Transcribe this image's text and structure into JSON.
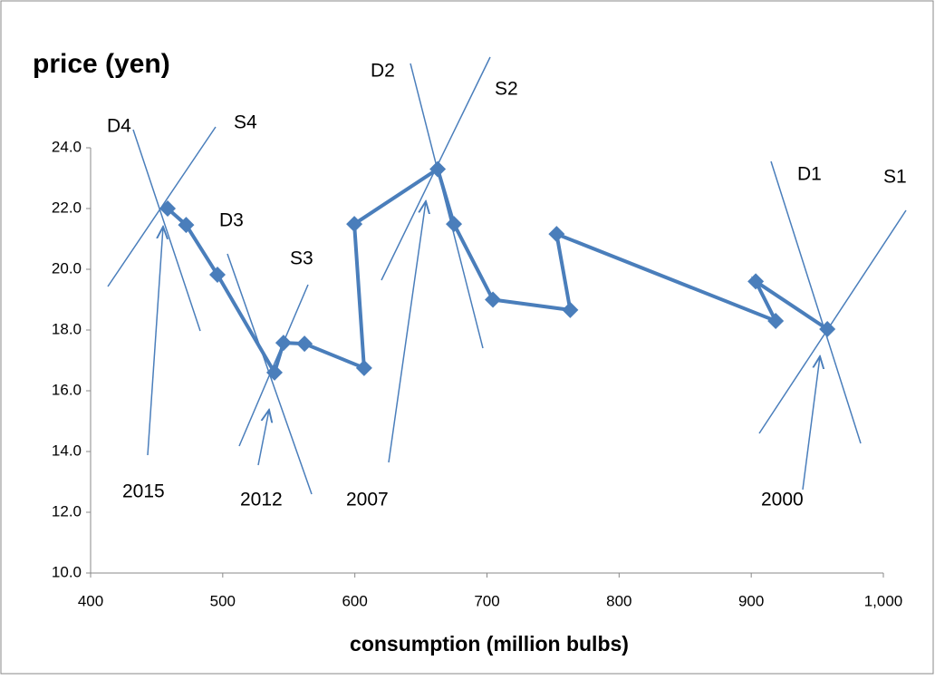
{
  "chart_data": {
    "type": "scatter-line",
    "title": "price (yen)",
    "x_label": "consumption (million bulbs)",
    "series": [
      {
        "color": "#4a7ebb",
        "x": [
          957.6,
          903.4,
          918.5,
          752.7,
          763,
          704.5,
          675,
          662.7,
          599.6,
          607,
          561.9,
          546,
          539.2,
          496,
          472.3,
          458.3
        ],
        "values": [
          18.03,
          19.6,
          18.3,
          21.16,
          18.66,
          19.0,
          21.49,
          23.3,
          21.49,
          16.75,
          17.55,
          17.58,
          16.6,
          19.82,
          21.46,
          22.0
        ]
      }
    ],
    "xlim": [
      400,
      1000
    ],
    "xticks": [
      400,
      500,
      600,
      700,
      800,
      900,
      {
        "value": 1000,
        "label": "1,000"
      }
    ],
    "ylim": [
      10,
      24
    ],
    "yticks": [
      {
        "value": 10,
        "label": "10.0"
      },
      {
        "value": 12,
        "label": "12.0"
      },
      {
        "value": 14,
        "label": "14.0"
      },
      {
        "value": 16,
        "label": "16.0"
      },
      {
        "value": 18,
        "label": "18.0"
      },
      {
        "value": 20,
        "label": "20.0"
      },
      {
        "value": 22,
        "label": "22.0"
      },
      {
        "value": 24,
        "label": "24.0"
      }
    ],
    "annotations": [
      "D4",
      "S4",
      "D3",
      "S3",
      "D2",
      "S2",
      "D1",
      "S1",
      "2015",
      "2012",
      "2007",
      "2000"
    ]
  }
}
